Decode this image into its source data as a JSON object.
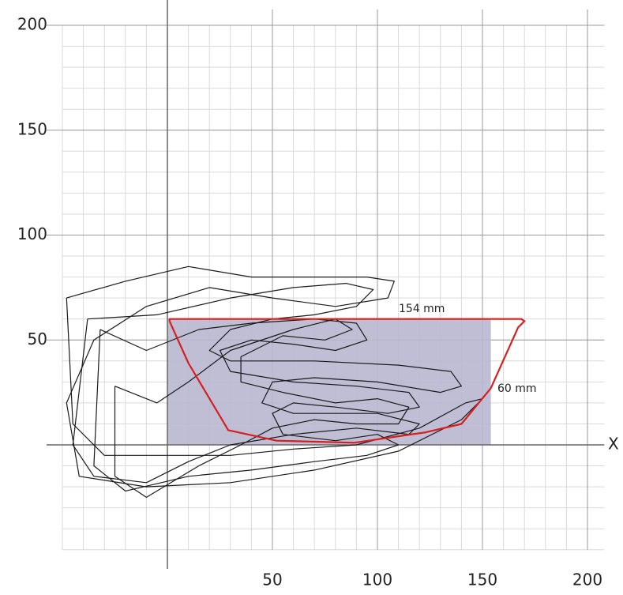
{
  "chart_data": {
    "type": "plot",
    "x_label": "X",
    "xlim": [
      -50,
      208
    ],
    "ylim": [
      -50,
      200
    ],
    "xticks": [
      50,
      100,
      150,
      200
    ],
    "yticks": [
      50,
      100,
      150,
      200
    ],
    "minor_grid": 10,
    "annotations": [
      "154 mm",
      "60 mm"
    ],
    "region": {
      "color": "#b8b7cf",
      "x": [
        0,
        154
      ],
      "y": [
        0,
        60
      ]
    },
    "outline": {
      "color": "#d62020",
      "x": [
        1,
        10,
        29,
        52,
        89,
        123,
        140,
        154,
        167,
        170,
        168.5,
        1,
        1
      ],
      "y": [
        59,
        39,
        7,
        2,
        1,
        6,
        10,
        27,
        56,
        59,
        60,
        60,
        59
      ]
    },
    "series": [
      {
        "color": "#1a1a1a",
        "x": [
          -48,
          -20,
          10,
          40,
          70,
          95,
          108,
          105,
          80,
          50,
          20,
          -10,
          -35,
          -48,
          -42,
          -10,
          30,
          70,
          110,
          140,
          150,
          142,
          120,
          90,
          60,
          30,
          0,
          -30,
          -45,
          -48
        ],
        "y": [
          70,
          78,
          85,
          80,
          80,
          80,
          78,
          70,
          66,
          70,
          75,
          66,
          50,
          20,
          -15,
          -20,
          -18,
          -12,
          -3,
          12,
          22,
          20,
          8,
          0,
          -2,
          -5,
          -5,
          -5,
          10,
          70
        ]
      },
      {
        "color": "#1a1a1a",
        "x": [
          -38,
          -5,
          30,
          60,
          85,
          98,
          90,
          70,
          50,
          30,
          20,
          30,
          70,
          110,
          135,
          140,
          130,
          100,
          70,
          50,
          45,
          60,
          100,
          120,
          115,
          90,
          60,
          30,
          10,
          -10,
          -35,
          -45,
          -38
        ],
        "y": [
          60,
          62,
          70,
          75,
          77,
          74,
          66,
          62,
          60,
          55,
          45,
          40,
          40,
          38,
          35,
          28,
          25,
          30,
          32,
          30,
          20,
          15,
          15,
          10,
          5,
          8,
          5,
          0,
          -8,
          -18,
          -15,
          0,
          60
        ]
      },
      {
        "color": "#1a1a1a",
        "x": [
          -32,
          -10,
          15,
          40,
          70,
          90,
          95,
          80,
          60,
          40,
          25,
          30,
          60,
          90,
          115,
          120,
          105,
          80,
          60,
          50,
          55,
          80,
          100,
          110,
          95,
          70,
          40,
          10,
          -20,
          -35,
          -32
        ],
        "y": [
          55,
          45,
          55,
          58,
          60,
          58,
          50,
          45,
          48,
          50,
          45,
          35,
          30,
          28,
          25,
          18,
          15,
          18,
          20,
          15,
          5,
          2,
          5,
          0,
          -5,
          -8,
          -12,
          -15,
          -22,
          -10,
          55
        ]
      },
      {
        "color": "#1a1a1a",
        "x": [
          -25,
          -5,
          10,
          30,
          60,
          80,
          88,
          75,
          55,
          35,
          35,
          55,
          80,
          100,
          115,
          110,
          90,
          70,
          50,
          35,
          15,
          -10,
          -25,
          -25
        ],
        "y": [
          28,
          20,
          30,
          45,
          55,
          60,
          55,
          50,
          52,
          42,
          30,
          25,
          20,
          22,
          18,
          10,
          10,
          12,
          8,
          0,
          -10,
          -25,
          -15,
          28
        ]
      }
    ]
  }
}
